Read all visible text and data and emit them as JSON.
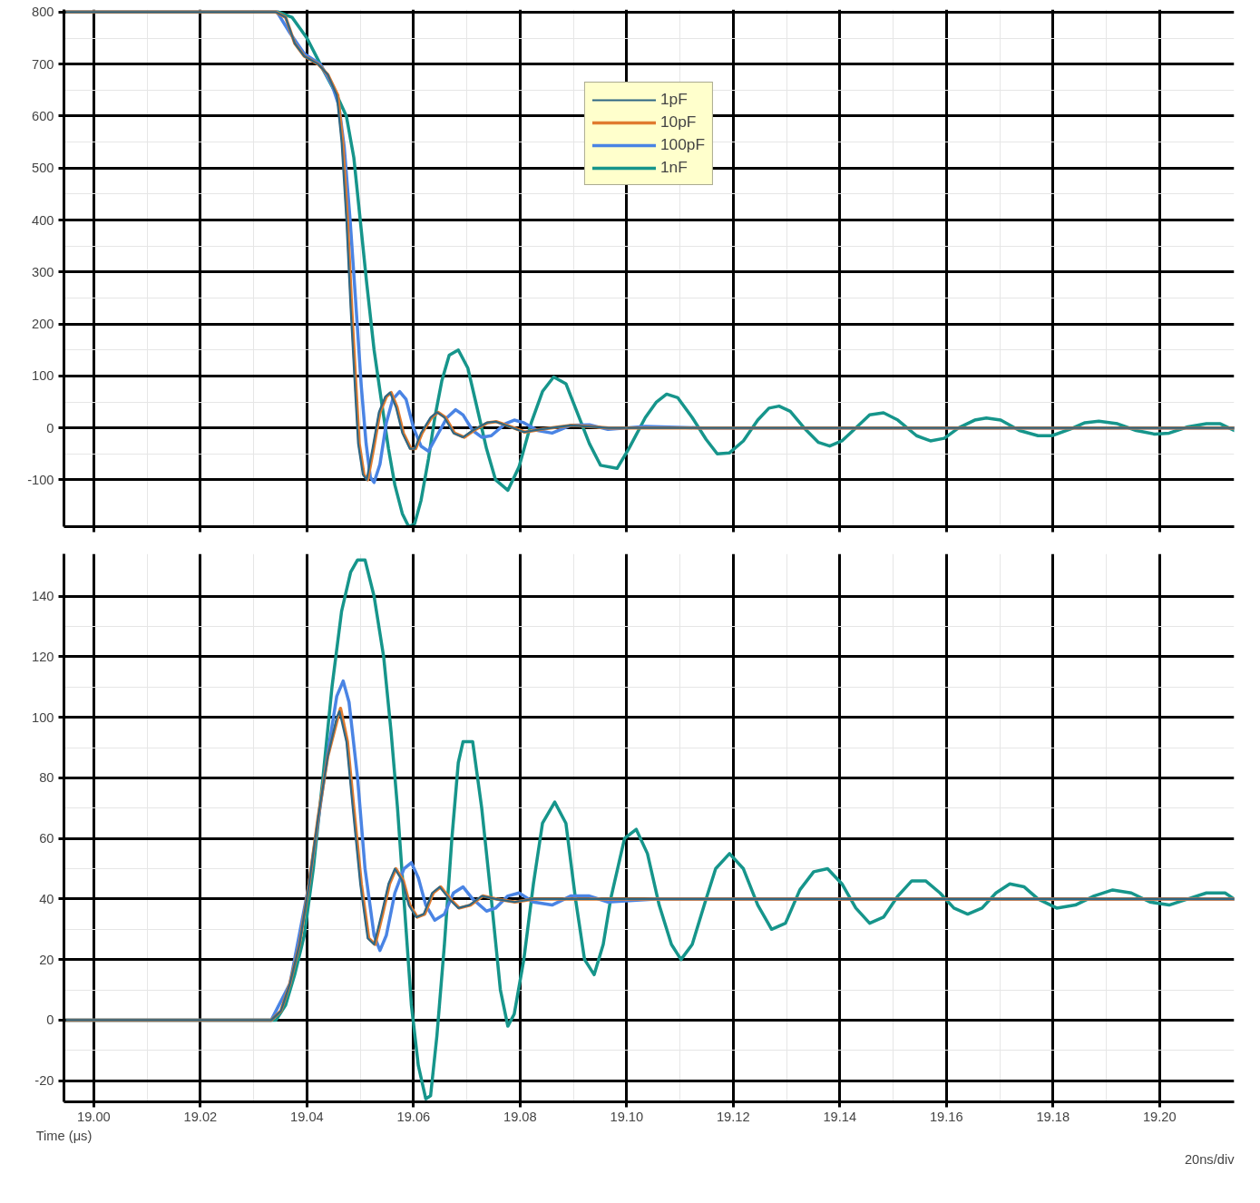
{
  "chart_data": [
    {
      "type": "line",
      "xlim": [
        18.9944,
        19.214
      ],
      "ylim": [
        -190,
        805
      ],
      "xticks": [
        {
          "value": 19.0,
          "label": null
        },
        {
          "value": 19.02,
          "label": null
        },
        {
          "value": 19.04,
          "label": null
        },
        {
          "value": 19.06,
          "label": null
        },
        {
          "value": 19.08,
          "label": null
        },
        {
          "value": 19.1,
          "label": null
        },
        {
          "value": 19.12,
          "label": null
        },
        {
          "value": 19.14,
          "label": null
        },
        {
          "value": 19.16,
          "label": null
        },
        {
          "value": 19.18,
          "label": null
        },
        {
          "value": 19.2,
          "label": null
        }
      ],
      "yticks": [
        -100,
        0,
        100,
        200,
        300,
        400,
        500,
        600,
        700,
        800
      ],
      "tick_labels": "y",
      "grid": true,
      "legend": "top",
      "series": [
        {
          "name": "1nF",
          "color": "#16958b",
          "x": [
            18.9944,
            19.0347,
            19.0372,
            19.04,
            19.043,
            19.0456,
            19.0474,
            19.0488,
            19.05,
            19.0512,
            19.0526,
            19.054,
            19.0553,
            19.0565,
            19.0579,
            19.0591,
            19.0602,
            19.0614,
            19.0628,
            19.064,
            19.0653,
            19.0667,
            19.0684,
            19.0702,
            19.0719,
            19.0737,
            19.0754,
            19.0777,
            19.0798,
            19.0821,
            19.0842,
            19.0863,
            19.0886,
            19.0907,
            19.093,
            19.0951,
            19.0982,
            19.1004,
            19.1035,
            19.1056,
            19.1075,
            19.1096,
            19.1123,
            19.1149,
            19.117,
            19.1193,
            19.1219,
            19.1246,
            19.1267,
            19.1286,
            19.1307,
            19.1333,
            19.136,
            19.1381,
            19.1404,
            19.143,
            19.1456,
            19.1482,
            19.1509,
            19.1544,
            19.157,
            19.1596,
            19.1623,
            19.1653,
            19.1675,
            19.1702,
            19.1737,
            19.1772,
            19.1798,
            19.1833,
            19.186,
            19.1886,
            19.1921,
            19.1956,
            19.1991,
            19.2018,
            19.2053,
            19.2088,
            19.2114,
            19.214
          ],
          "values": [
            800,
            800,
            790,
            750,
            690,
            640,
            600,
            520,
            400,
            280,
            150,
            50,
            -40,
            -110,
            -165,
            -190,
            -185,
            -140,
            -60,
            20,
            90,
            140,
            150,
            115,
            40,
            -40,
            -100,
            -120,
            -75,
            10,
            70,
            98,
            85,
            30,
            -30,
            -72,
            -78,
            -40,
            20,
            50,
            65,
            58,
            20,
            -22,
            -50,
            -48,
            -25,
            15,
            38,
            42,
            32,
            0,
            -28,
            -35,
            -25,
            0,
            25,
            29,
            15,
            -15,
            -25,
            -20,
            0,
            15,
            19,
            15,
            -5,
            -15,
            -15,
            -2,
            10,
            13,
            8,
            -5,
            -12,
            -10,
            2,
            8,
            8,
            -5
          ]
        },
        {
          "name": "100pF",
          "color": "#4a84e4",
          "x": [
            18.9944,
            19.0344,
            19.0368,
            19.0395,
            19.0425,
            19.0447,
            19.046,
            19.047,
            19.0481,
            19.0491,
            19.0502,
            19.0511,
            19.0519,
            19.0526,
            19.0537,
            19.0549,
            19.0561,
            19.0574,
            19.0586,
            19.06,
            19.0614,
            19.0628,
            19.0644,
            19.0663,
            19.0679,
            19.0693,
            19.0711,
            19.0728,
            19.0746,
            19.0772,
            19.0789,
            19.0807,
            19.0833,
            19.086,
            19.0895,
            19.093,
            19.0965,
            19.1035,
            19.114,
            19.214
          ],
          "values": [
            800,
            800,
            760,
            720,
            700,
            660,
            620,
            540,
            400,
            250,
            80,
            -30,
            -95,
            -105,
            -70,
            10,
            55,
            70,
            55,
            0,
            -35,
            -45,
            -15,
            20,
            35,
            25,
            -5,
            -18,
            -15,
            8,
            15,
            10,
            -5,
            -10,
            5,
            6,
            -3,
            3,
            0,
            0
          ]
        },
        {
          "name": "10pF",
          "color": "#e07b2f",
          "x": [
            18.9944,
            19.0342,
            19.036,
            19.0377,
            19.0395,
            19.0421,
            19.0439,
            19.0458,
            19.0467,
            19.0476,
            19.0484,
            19.0493,
            19.0498,
            19.0507,
            19.0514,
            19.0525,
            19.0537,
            19.0549,
            19.0558,
            19.0569,
            19.0581,
            19.0595,
            19.0604,
            19.0616,
            19.0634,
            19.0646,
            19.066,
            19.0677,
            19.0695,
            19.0713,
            19.0739,
            19.0756,
            19.0783,
            19.0809,
            19.0844,
            19.0897,
            19.0967,
            19.114,
            19.214
          ],
          "values": [
            800,
            800,
            790,
            740,
            715,
            700,
            680,
            640,
            550,
            400,
            230,
            60,
            -30,
            -90,
            -100,
            -40,
            30,
            60,
            68,
            40,
            -10,
            -40,
            -40,
            -10,
            20,
            30,
            20,
            -10,
            -18,
            -5,
            10,
            12,
            2,
            -8,
            -2,
            5,
            0,
            0,
            0
          ]
        },
        {
          "name": "1pF",
          "color": "#2e6784",
          "x": [
            18.9944,
            19.0342,
            19.036,
            19.0377,
            19.0395,
            19.0421,
            19.0439,
            19.0456,
            19.0465,
            19.0474,
            19.0482,
            19.0491,
            19.0496,
            19.0505,
            19.0512,
            19.0523,
            19.0535,
            19.0547,
            19.0556,
            19.0567,
            19.0579,
            19.0593,
            19.0602,
            19.0614,
            19.0632,
            19.0644,
            19.0658,
            19.0675,
            19.0693,
            19.0711,
            19.0737,
            19.0754,
            19.0781,
            19.0807,
            19.0842,
            19.0895,
            19.0965,
            19.114,
            19.214
          ],
          "values": [
            800,
            800,
            790,
            740,
            715,
            700,
            680,
            640,
            550,
            400,
            230,
            60,
            -30,
            -90,
            -100,
            -40,
            30,
            60,
            68,
            40,
            -10,
            -40,
            -40,
            -10,
            20,
            30,
            20,
            -10,
            -18,
            -5,
            10,
            12,
            2,
            -8,
            -2,
            5,
            0,
            0,
            0
          ]
        }
      ]
    },
    {
      "type": "line",
      "xlim": [
        18.9944,
        19.214
      ],
      "ylim": [
        -27,
        154
      ],
      "xlabel": "Time (μs)",
      "annotations": [
        "20ns/div"
      ],
      "xticks": [
        {
          "value": 19.0,
          "label": "19.00"
        },
        {
          "value": 19.02,
          "label": "19.02"
        },
        {
          "value": 19.04,
          "label": "19.04"
        },
        {
          "value": 19.06,
          "label": "19.06"
        },
        {
          "value": 19.08,
          "label": "19.08"
        },
        {
          "value": 19.1,
          "label": "19.10"
        },
        {
          "value": 19.12,
          "label": "19.12"
        },
        {
          "value": 19.14,
          "label": "19.14"
        },
        {
          "value": 19.16,
          "label": "19.16"
        },
        {
          "value": 19.18,
          "label": "19.18"
        },
        {
          "value": 19.2,
          "label": "19.20"
        }
      ],
      "yticks": [
        -20,
        0,
        20,
        40,
        60,
        80,
        100,
        120,
        140
      ],
      "grid": true,
      "series": [
        {
          "color": "#16958b",
          "x": [
            18.9944,
            19.0342,
            19.036,
            19.0377,
            19.0395,
            19.0412,
            19.043,
            19.0447,
            19.0465,
            19.0482,
            19.0495,
            19.0509,
            19.0526,
            19.0544,
            19.0558,
            19.057,
            19.0584,
            19.0596,
            19.0609,
            19.0623,
            19.0632,
            19.0644,
            19.0658,
            19.0672,
            19.0684,
            19.0693,
            19.0711,
            19.0728,
            19.0746,
            19.0763,
            19.0777,
            19.0789,
            19.0807,
            19.0825,
            19.0842,
            19.0865,
            19.0886,
            19.0904,
            19.0921,
            19.0939,
            19.0956,
            19.097,
            19.0996,
            19.1018,
            19.1039,
            19.1061,
            19.1084,
            19.1102,
            19.1123,
            19.1149,
            19.1167,
            19.1193,
            19.1219,
            19.1246,
            19.1272,
            19.1298,
            19.1325,
            19.1351,
            19.1377,
            19.1404,
            19.143,
            19.1456,
            19.1482,
            19.1509,
            19.1535,
            19.1561,
            19.1588,
            19.1614,
            19.164,
            19.1667,
            19.1693,
            19.1719,
            19.1746,
            19.1772,
            19.1807,
            19.1842,
            19.1877,
            19.1912,
            19.1947,
            19.1982,
            19.2018,
            19.2053,
            19.2088,
            19.2123,
            19.214
          ],
          "values": [
            0,
            0,
            5,
            15,
            28,
            50,
            80,
            110,
            135,
            148,
            152,
            152,
            140,
            120,
            95,
            70,
            35,
            5,
            -15,
            -26,
            -25,
            -5,
            25,
            60,
            85,
            92,
            92,
            70,
            40,
            10,
            -2,
            2,
            20,
            45,
            65,
            72,
            65,
            40,
            20,
            15,
            25,
            40,
            60,
            63,
            55,
            38,
            25,
            20,
            25,
            40,
            50,
            55,
            50,
            38,
            30,
            32,
            43,
            49,
            50,
            45,
            37,
            32,
            34,
            41,
            46,
            46,
            42,
            37,
            35,
            37,
            42,
            45,
            44,
            40,
            37,
            38,
            41,
            43,
            42,
            39,
            38,
            40,
            42,
            42,
            40
          ]
        },
        {
          "color": "#4a84e4",
          "x": [
            18.9944,
            19.0333,
            19.0368,
            19.0404,
            19.0439,
            19.0456,
            19.0468,
            19.0479,
            19.0495,
            19.0509,
            19.0526,
            19.0537,
            19.0549,
            19.0565,
            19.0582,
            19.0596,
            19.0609,
            19.0623,
            19.064,
            19.0658,
            19.0675,
            19.0693,
            19.0711,
            19.0737,
            19.0754,
            19.0777,
            19.0798,
            19.0825,
            19.086,
            19.0895,
            19.093,
            19.0965,
            19.1053,
            19.214
          ],
          "values": [
            0,
            0,
            12,
            45,
            88,
            107,
            112,
            105,
            80,
            50,
            28,
            23,
            28,
            42,
            50,
            52,
            47,
            38,
            33,
            35,
            42,
            44,
            40,
            36,
            37,
            41,
            42,
            39,
            38,
            41,
            41,
            39,
            40,
            40
          ]
        },
        {
          "color": "#e07b2f",
          "x": [
            18.9944,
            19.0333,
            19.0351,
            19.0368,
            19.0386,
            19.0404,
            19.0421,
            19.0439,
            19.0458,
            19.0463,
            19.0476,
            19.0488,
            19.0502,
            19.0516,
            19.0528,
            19.0542,
            19.0555,
            19.0567,
            19.0581,
            19.0593,
            19.0607,
            19.0621,
            19.0637,
            19.0651,
            19.0669,
            19.0686,
            19.0707,
            19.073,
            19.0756,
            19.0791,
            19.0825,
            19.1,
            19.214
          ],
          "values": [
            0,
            0,
            3,
            12,
            25,
            45,
            67,
            87,
            100,
            103,
            92,
            70,
            45,
            27,
            25,
            35,
            45,
            50,
            46,
            38,
            34,
            35,
            42,
            44,
            40,
            37,
            38,
            41,
            40,
            39,
            40,
            40,
            40
          ]
        },
        {
          "color": "#2e6784",
          "x": [
            18.9944,
            19.0333,
            19.0351,
            19.0368,
            19.0386,
            19.0404,
            19.0421,
            19.0439,
            19.0456,
            19.0461,
            19.0474,
            19.0486,
            19.05,
            19.0514,
            19.0526,
            19.054,
            19.0553,
            19.0565,
            19.0579,
            19.0591,
            19.0605,
            19.0619,
            19.0635,
            19.0649,
            19.0667,
            19.0684,
            19.0705,
            19.0728,
            19.0754,
            19.0789,
            19.0825,
            19.1,
            19.214
          ],
          "values": [
            0,
            0,
            3,
            12,
            25,
            45,
            67,
            87,
            100,
            102,
            92,
            70,
            45,
            27,
            25,
            35,
            45,
            50,
            46,
            38,
            34,
            35,
            42,
            44,
            40,
            37,
            38,
            41,
            40,
            39,
            40,
            40,
            40
          ]
        }
      ]
    }
  ]
}
